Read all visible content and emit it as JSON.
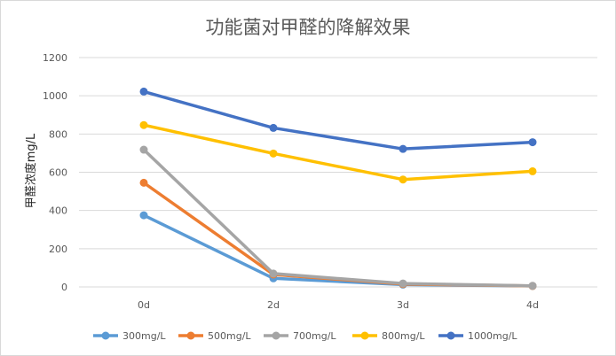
{
  "chart_data": {
    "type": "line",
    "title": "功能菌对甲醛的降解效果",
    "xlabel": "",
    "ylabel": "甲醛浓度mg/L",
    "categories": [
      "0d",
      "2d",
      "3d",
      "4d"
    ],
    "ylim": [
      0,
      1200
    ],
    "yticks": [
      0,
      200,
      400,
      600,
      800,
      1000,
      1200
    ],
    "grid": true,
    "legend_position": "bottom",
    "series": [
      {
        "name": "300mg/L",
        "color": "#5B9BD5",
        "values": [
          375,
          45,
          12,
          5
        ]
      },
      {
        "name": "500mg/L",
        "color": "#ED7D31",
        "values": [
          545,
          65,
          15,
          5
        ]
      },
      {
        "name": "700mg/L",
        "color": "#A5A5A5",
        "values": [
          718,
          70,
          18,
          6
        ]
      },
      {
        "name": "800mg/L",
        "color": "#FFC000",
        "values": [
          847,
          698,
          562,
          605
        ]
      },
      {
        "name": "1000mg/L",
        "color": "#4472C4",
        "values": [
          1022,
          832,
          722,
          757
        ]
      }
    ]
  }
}
